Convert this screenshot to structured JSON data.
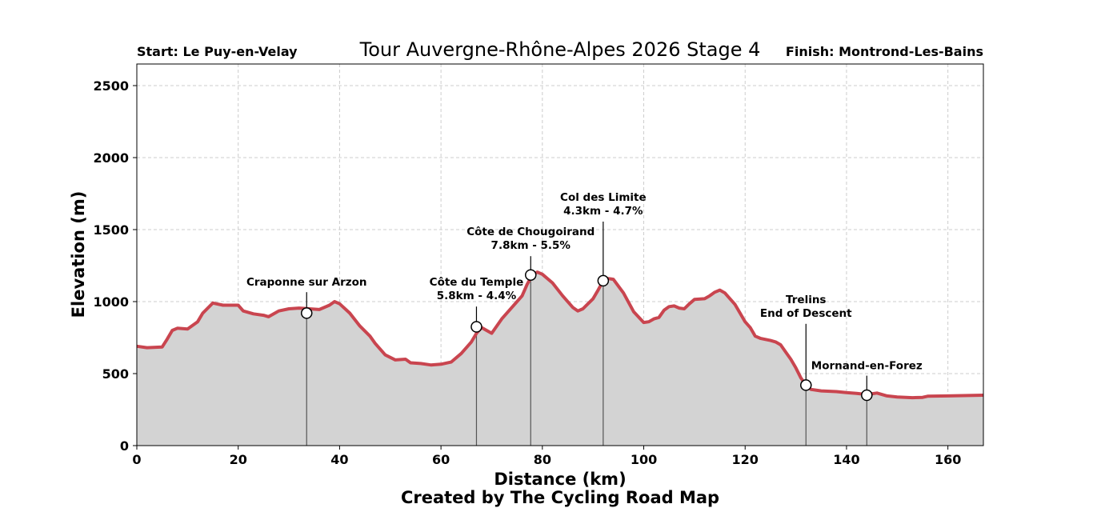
{
  "header": {
    "start": "Start: Le Puy-en-Velay",
    "title": "Tour Auvergne-Rhône-Alpes 2026 Stage 4",
    "finish": "Finish: Montrond-Les-Bains"
  },
  "credit": "Created by The Cycling Road Map",
  "colors": {
    "line": "#c9454f",
    "fill": "#d3d3d3",
    "grid": "#cccccc",
    "marker_edge": "#000000",
    "marker_fill": "#ffffff",
    "vline": "#555555"
  },
  "chart_data": {
    "type": "area",
    "title": "Tour Auvergne-Rhône-Alpes 2026 Stage 4",
    "xlabel": "Distance (km)",
    "ylabel": "Elevation (m)",
    "xlim": [
      0,
      167
    ],
    "ylim": [
      0,
      2650
    ],
    "xticks": [
      0,
      20,
      40,
      60,
      80,
      100,
      120,
      140,
      160
    ],
    "yticks": [
      0,
      500,
      1000,
      1500,
      2000,
      2500
    ],
    "grid": true,
    "profile": [
      [
        0,
        690
      ],
      [
        2,
        680
      ],
      [
        5,
        685
      ],
      [
        6,
        740
      ],
      [
        7,
        800
      ],
      [
        8,
        815
      ],
      [
        10,
        810
      ],
      [
        12,
        860
      ],
      [
        13,
        920
      ],
      [
        15,
        990
      ],
      [
        17,
        975
      ],
      [
        20,
        975
      ],
      [
        21,
        935
      ],
      [
        23,
        915
      ],
      [
        25,
        905
      ],
      [
        26,
        895
      ],
      [
        27,
        915
      ],
      [
        28,
        935
      ],
      [
        30,
        950
      ],
      [
        32,
        955
      ],
      [
        34,
        950
      ],
      [
        36,
        945
      ],
      [
        38,
        975
      ],
      [
        39,
        1000
      ],
      [
        40,
        985
      ],
      [
        42,
        920
      ],
      [
        44,
        830
      ],
      [
        46,
        760
      ],
      [
        47,
        710
      ],
      [
        49,
        630
      ],
      [
        51,
        595
      ],
      [
        53,
        600
      ],
      [
        54,
        575
      ],
      [
        56,
        570
      ],
      [
        58,
        560
      ],
      [
        60,
        565
      ],
      [
        62,
        580
      ],
      [
        64,
        640
      ],
      [
        66,
        720
      ],
      [
        67,
        780
      ],
      [
        68,
        820
      ],
      [
        69,
        800
      ],
      [
        70,
        780
      ],
      [
        72,
        880
      ],
      [
        74,
        960
      ],
      [
        76,
        1040
      ],
      [
        77,
        1120
      ],
      [
        78,
        1185
      ],
      [
        79,
        1205
      ],
      [
        80,
        1190
      ],
      [
        82,
        1130
      ],
      [
        84,
        1040
      ],
      [
        86,
        960
      ],
      [
        87,
        935
      ],
      [
        88,
        950
      ],
      [
        90,
        1020
      ],
      [
        91,
        1080
      ],
      [
        92,
        1145
      ],
      [
        93,
        1160
      ],
      [
        94,
        1155
      ],
      [
        96,
        1060
      ],
      [
        98,
        930
      ],
      [
        100,
        855
      ],
      [
        101,
        860
      ],
      [
        102,
        880
      ],
      [
        103,
        890
      ],
      [
        104,
        940
      ],
      [
        105,
        965
      ],
      [
        106,
        970
      ],
      [
        107,
        955
      ],
      [
        108,
        950
      ],
      [
        109,
        985
      ],
      [
        110,
        1015
      ],
      [
        112,
        1020
      ],
      [
        113,
        1040
      ],
      [
        114,
        1065
      ],
      [
        115,
        1080
      ],
      [
        116,
        1060
      ],
      [
        118,
        980
      ],
      [
        119,
        920
      ],
      [
        120,
        860
      ],
      [
        121,
        820
      ],
      [
        122,
        760
      ],
      [
        123,
        745
      ],
      [
        125,
        730
      ],
      [
        126,
        720
      ],
      [
        127,
        700
      ],
      [
        128,
        650
      ],
      [
        129,
        600
      ],
      [
        130,
        540
      ],
      [
        131,
        470
      ],
      [
        132,
        420
      ],
      [
        133,
        390
      ],
      [
        135,
        380
      ],
      [
        138,
        375
      ],
      [
        140,
        368
      ],
      [
        142,
        362
      ],
      [
        144,
        355
      ],
      [
        146,
        365
      ],
      [
        148,
        345
      ],
      [
        150,
        338
      ],
      [
        153,
        333
      ],
      [
        155,
        335
      ],
      [
        156,
        343
      ],
      [
        160,
        345
      ],
      [
        164,
        348
      ],
      [
        167,
        350
      ]
    ],
    "annotations": [
      {
        "km": 33.5,
        "elevation": 920,
        "name": "Craponne sur Arzon",
        "detail": "",
        "label_y": 1110
      },
      {
        "km": 67,
        "elevation": 825,
        "name": "Côte du Temple",
        "detail": "5.8km - 4.4%",
        "label_y": 1110
      },
      {
        "km": 77.7,
        "elevation": 1185,
        "name": "Côte de Chougoirand",
        "detail": "7.8km - 5.5%",
        "label_y": 1460
      },
      {
        "km": 92,
        "elevation": 1145,
        "name": "Col des Limite",
        "detail": "4.3km - 4.7%",
        "label_y": 1700
      },
      {
        "km": 132,
        "elevation": 420,
        "name": "Trelins",
        "detail": "End of Descent",
        "label_y": 990
      },
      {
        "km": 144,
        "elevation": 350,
        "name": "Mornand-en-Forez",
        "detail": "",
        "label_y": 530
      }
    ]
  }
}
